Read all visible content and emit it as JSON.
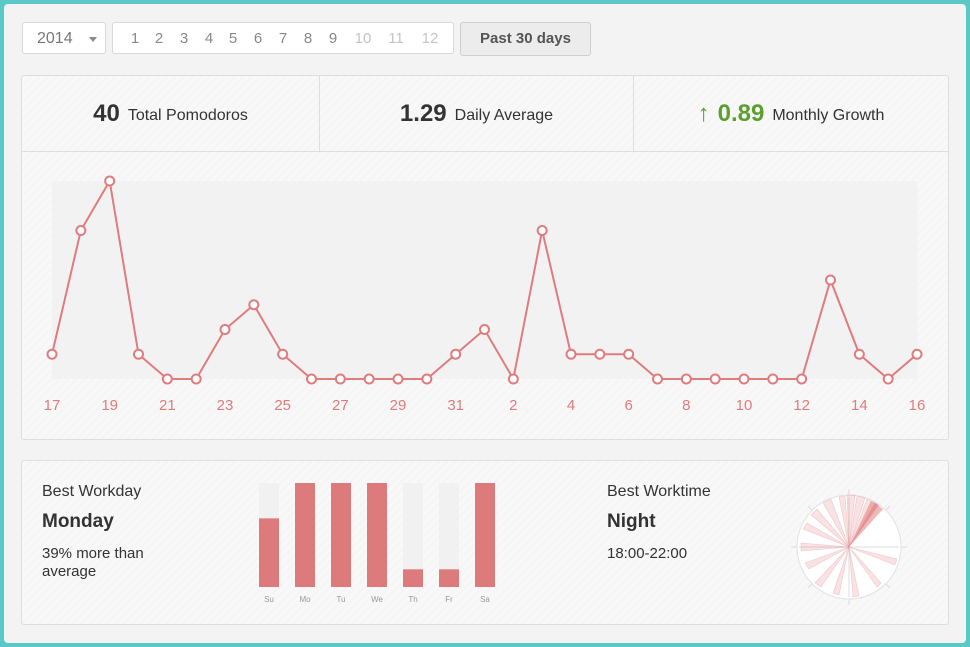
{
  "toolbar": {
    "year": "2014",
    "months": [
      "1",
      "2",
      "3",
      "4",
      "5",
      "6",
      "7",
      "8",
      "9",
      "10",
      "11",
      "12"
    ],
    "past_label": "Past 30 days"
  },
  "summary": {
    "total": {
      "value": "40",
      "label": "Total Pomodoros"
    },
    "average": {
      "value": "1.29",
      "label": "Daily Average"
    },
    "growth": {
      "arrow": "↑",
      "value": "0.89",
      "label": "Monthly Growth"
    }
  },
  "colors": {
    "line": "#e07b7e",
    "bar": "#dc7a7c",
    "growth": "#5ba02e"
  },
  "chart_data": [
    {
      "type": "line",
      "x": [
        17,
        18,
        19,
        20,
        21,
        22,
        23,
        24,
        25,
        26,
        27,
        28,
        29,
        30,
        31,
        1,
        2,
        3,
        4,
        5,
        6,
        7,
        8,
        9,
        10,
        11,
        12,
        13,
        14,
        15,
        16
      ],
      "tick_labels": [
        "17",
        "19",
        "21",
        "23",
        "25",
        "27",
        "29",
        "31",
        "2",
        "4",
        "6",
        "8",
        "10",
        "12",
        "14",
        "16"
      ],
      "values": [
        1,
        6,
        8,
        1,
        0,
        0,
        2,
        3,
        1,
        0,
        0,
        0,
        0,
        0,
        1,
        2,
        0,
        6,
        1,
        1,
        1,
        0,
        0,
        0,
        0,
        0,
        0,
        4,
        1,
        0,
        1
      ],
      "ylim": [
        0,
        8
      ]
    },
    {
      "type": "bar",
      "categories": [
        "Su",
        "Mo",
        "Tu",
        "We",
        "Th",
        "Fr",
        "Sa"
      ],
      "values": [
        0.66,
        1.0,
        1.0,
        1.0,
        0.17,
        0.17,
        1.0
      ]
    }
  ],
  "best_workday": {
    "title": "Best Workday",
    "day": "Monday",
    "desc": "39% more than average"
  },
  "best_worktime": {
    "title": "Best Worktime",
    "period": "Night",
    "range": "18:00-22:00"
  }
}
